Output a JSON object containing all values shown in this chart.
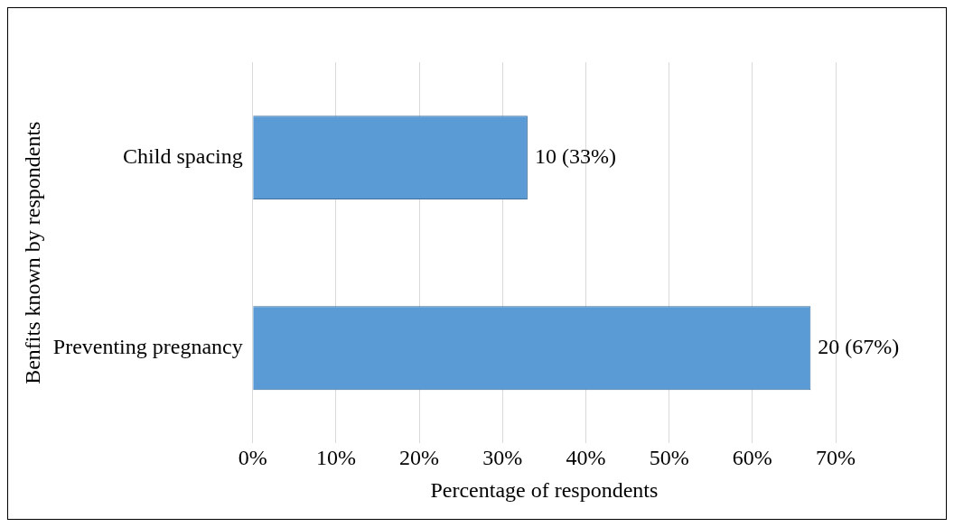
{
  "chart_data": {
    "type": "bar",
    "orientation": "horizontal",
    "xlabel": "Percentage of respondents",
    "ylabel": "Benfits known by respondents",
    "categories": [
      "Child spacing",
      "Preventing pregnancy"
    ],
    "values": [
      33,
      67
    ],
    "value_labels": [
      "10 (33%)",
      "20 (67%)"
    ],
    "color": "#5b9bd5",
    "xlim": [
      0,
      70
    ],
    "xticks": [
      {
        "value": 0,
        "label": "0%"
      },
      {
        "value": 10,
        "label": "10%"
      },
      {
        "value": 20,
        "label": "20%"
      },
      {
        "value": 30,
        "label": "30%"
      },
      {
        "value": 40,
        "label": "40%"
      },
      {
        "value": 50,
        "label": "50%"
      },
      {
        "value": 60,
        "label": "60%"
      },
      {
        "value": 70,
        "label": "70%"
      }
    ],
    "grid": "x",
    "legend": false
  }
}
